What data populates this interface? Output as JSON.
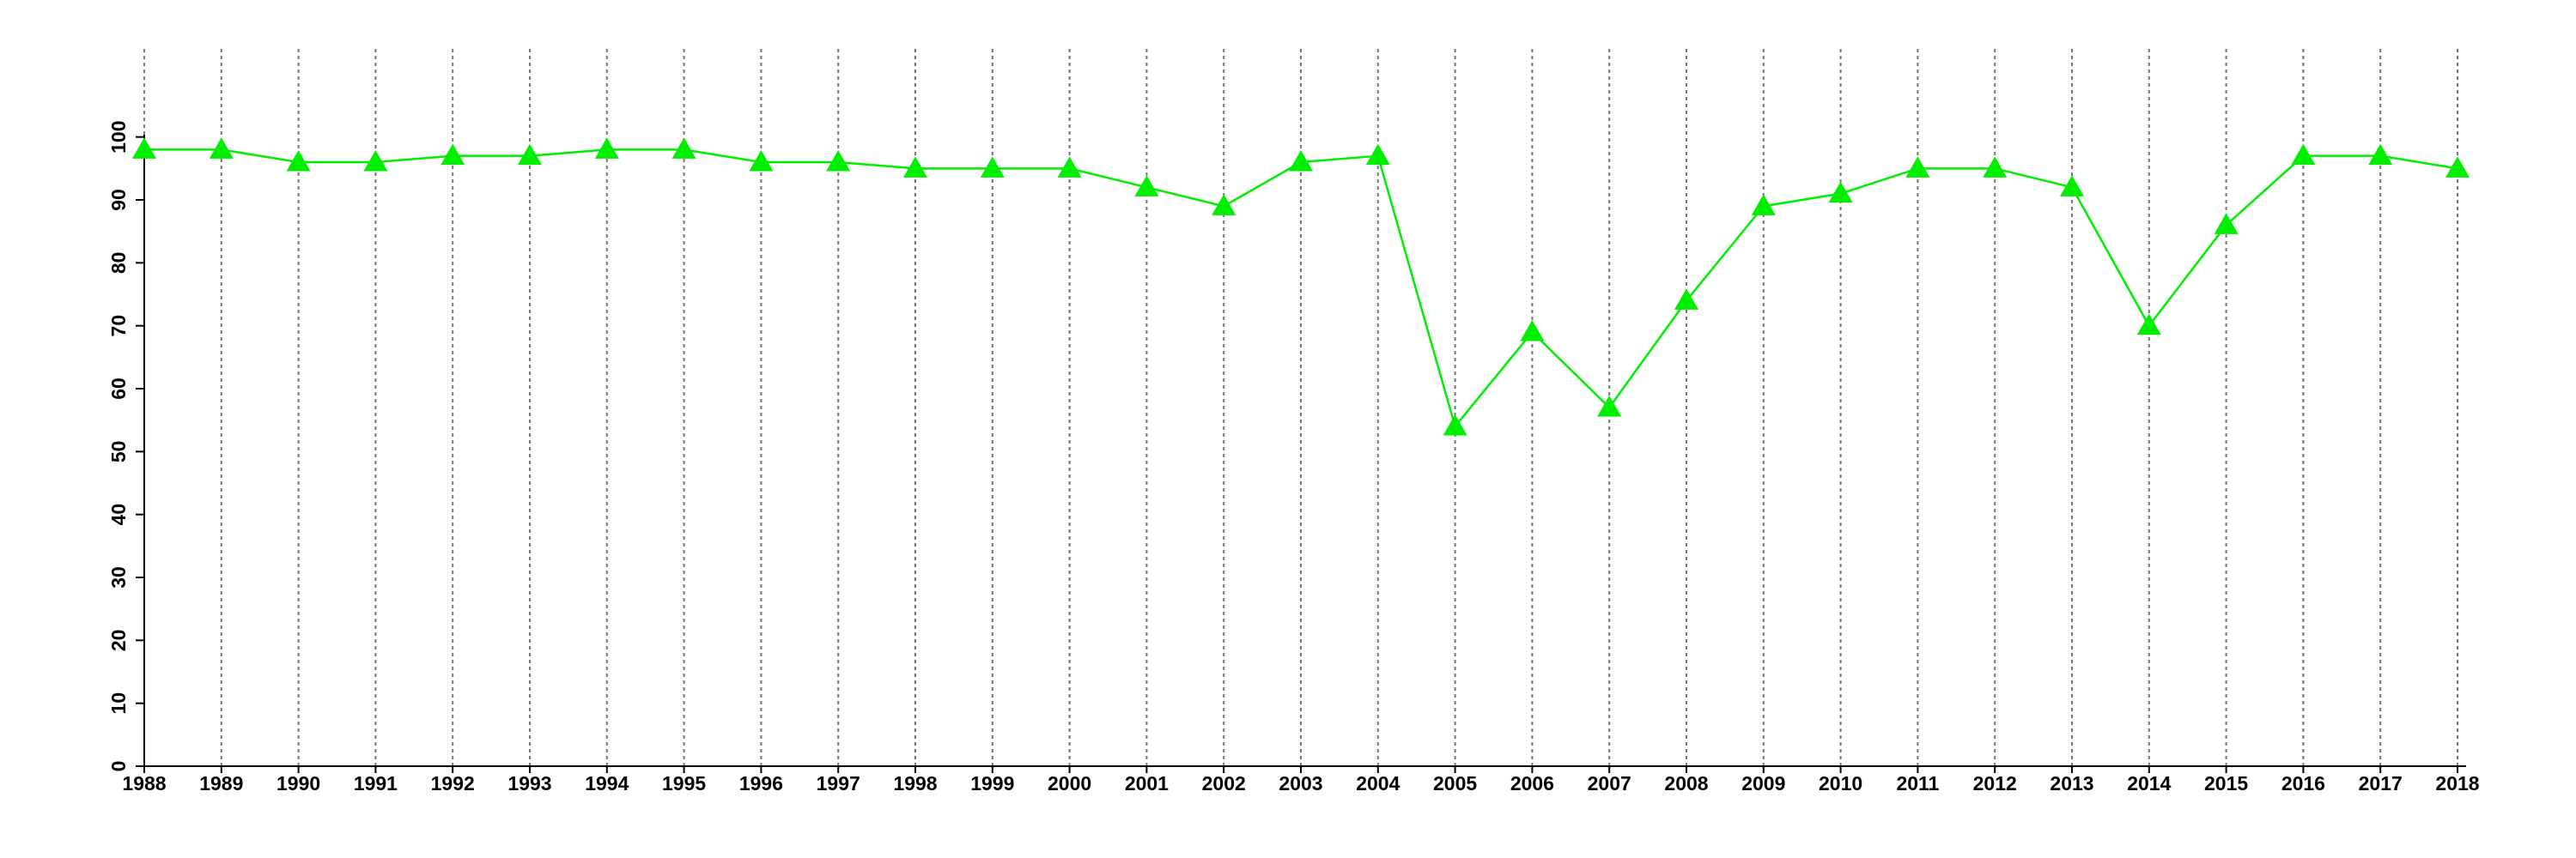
{
  "chart_data": {
    "type": "line",
    "categories": [
      "1988",
      "1989",
      "1990",
      "1991",
      "1992",
      "1993",
      "1994",
      "1995",
      "1996",
      "1997",
      "1998",
      "1999",
      "2000",
      "2001",
      "2002",
      "2003",
      "2004",
      "2005",
      "2006",
      "2007",
      "2008",
      "2009",
      "2010",
      "2011",
      "2012",
      "2013",
      "2014",
      "2015",
      "2016",
      "2017",
      "2018"
    ],
    "series": [
      {
        "color": "#00ee00",
        "marker": "triangle",
        "values": [
          98,
          98,
          96,
          96,
          97,
          97,
          98,
          98,
          96,
          96,
          95,
          95,
          95,
          92,
          89,
          96,
          97,
          54,
          69,
          57,
          74,
          89,
          91,
          95,
          95,
          92,
          70,
          86,
          97,
          97,
          95
        ]
      }
    ],
    "ylim": [
      0,
      114
    ],
    "yticks": [
      0,
      10,
      20,
      30,
      40,
      50,
      60,
      70,
      80,
      90,
      100
    ],
    "grid": "x"
  }
}
